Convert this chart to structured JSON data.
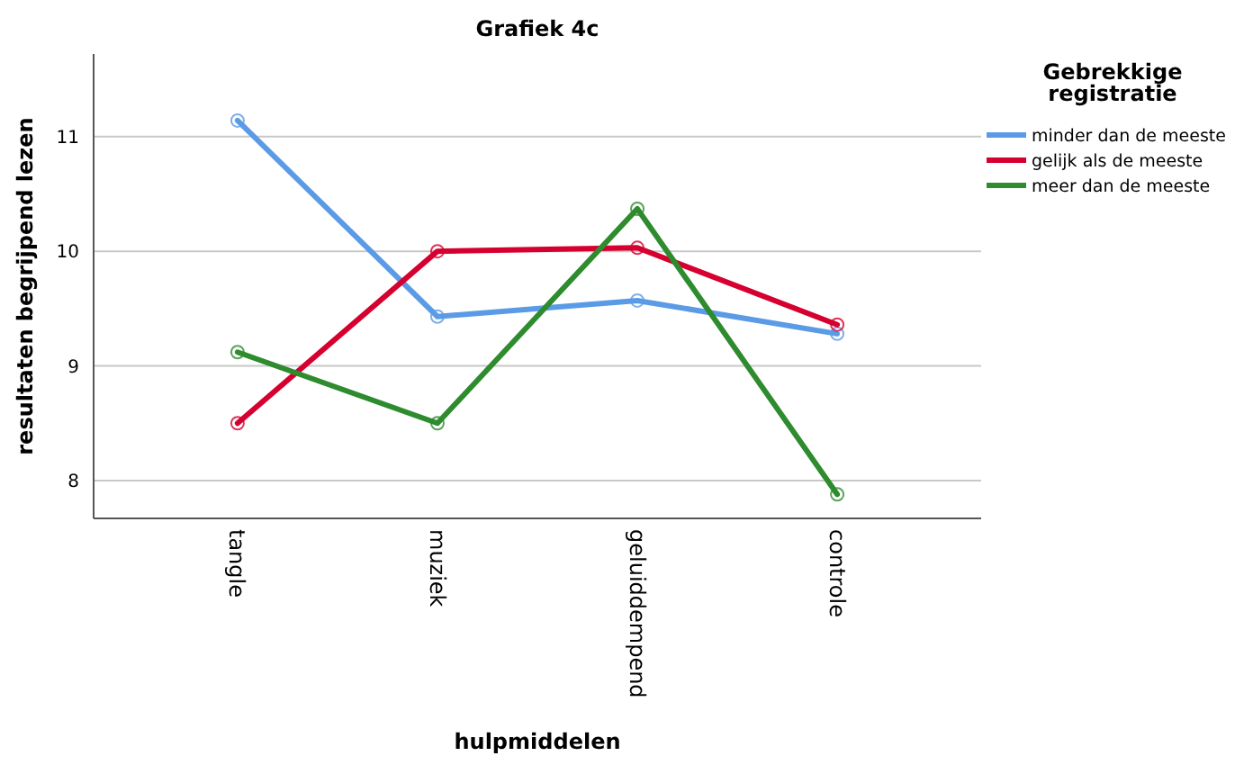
{
  "chart_data": {
    "type": "line",
    "title": "Grafiek 4c",
    "xlabel": "hulpmiddelen",
    "ylabel": "resultaten begrijpend lezen",
    "legend_title": "Gebrekkige registratie",
    "categories": [
      "tangle",
      "muziek",
      "geluiddempend",
      "controle"
    ],
    "series": [
      {
        "name": "minder dan de meeste",
        "color": "#5b9be6",
        "values": [
          11.14,
          9.43,
          9.57,
          9.28
        ]
      },
      {
        "name": "gelijk als de meeste",
        "color": "#d5002f",
        "values": [
          8.5,
          10.0,
          10.03,
          9.36
        ]
      },
      {
        "name": "meer dan de meeste",
        "color": "#2e8b2e",
        "values": [
          9.12,
          8.5,
          10.37,
          7.88
        ]
      }
    ],
    "ylim": [
      7.67,
      11.72
    ],
    "yticks": [
      8,
      9,
      10,
      11
    ],
    "grid": "y",
    "legend": "top right",
    "marker": "circle",
    "line_style": "solid"
  }
}
